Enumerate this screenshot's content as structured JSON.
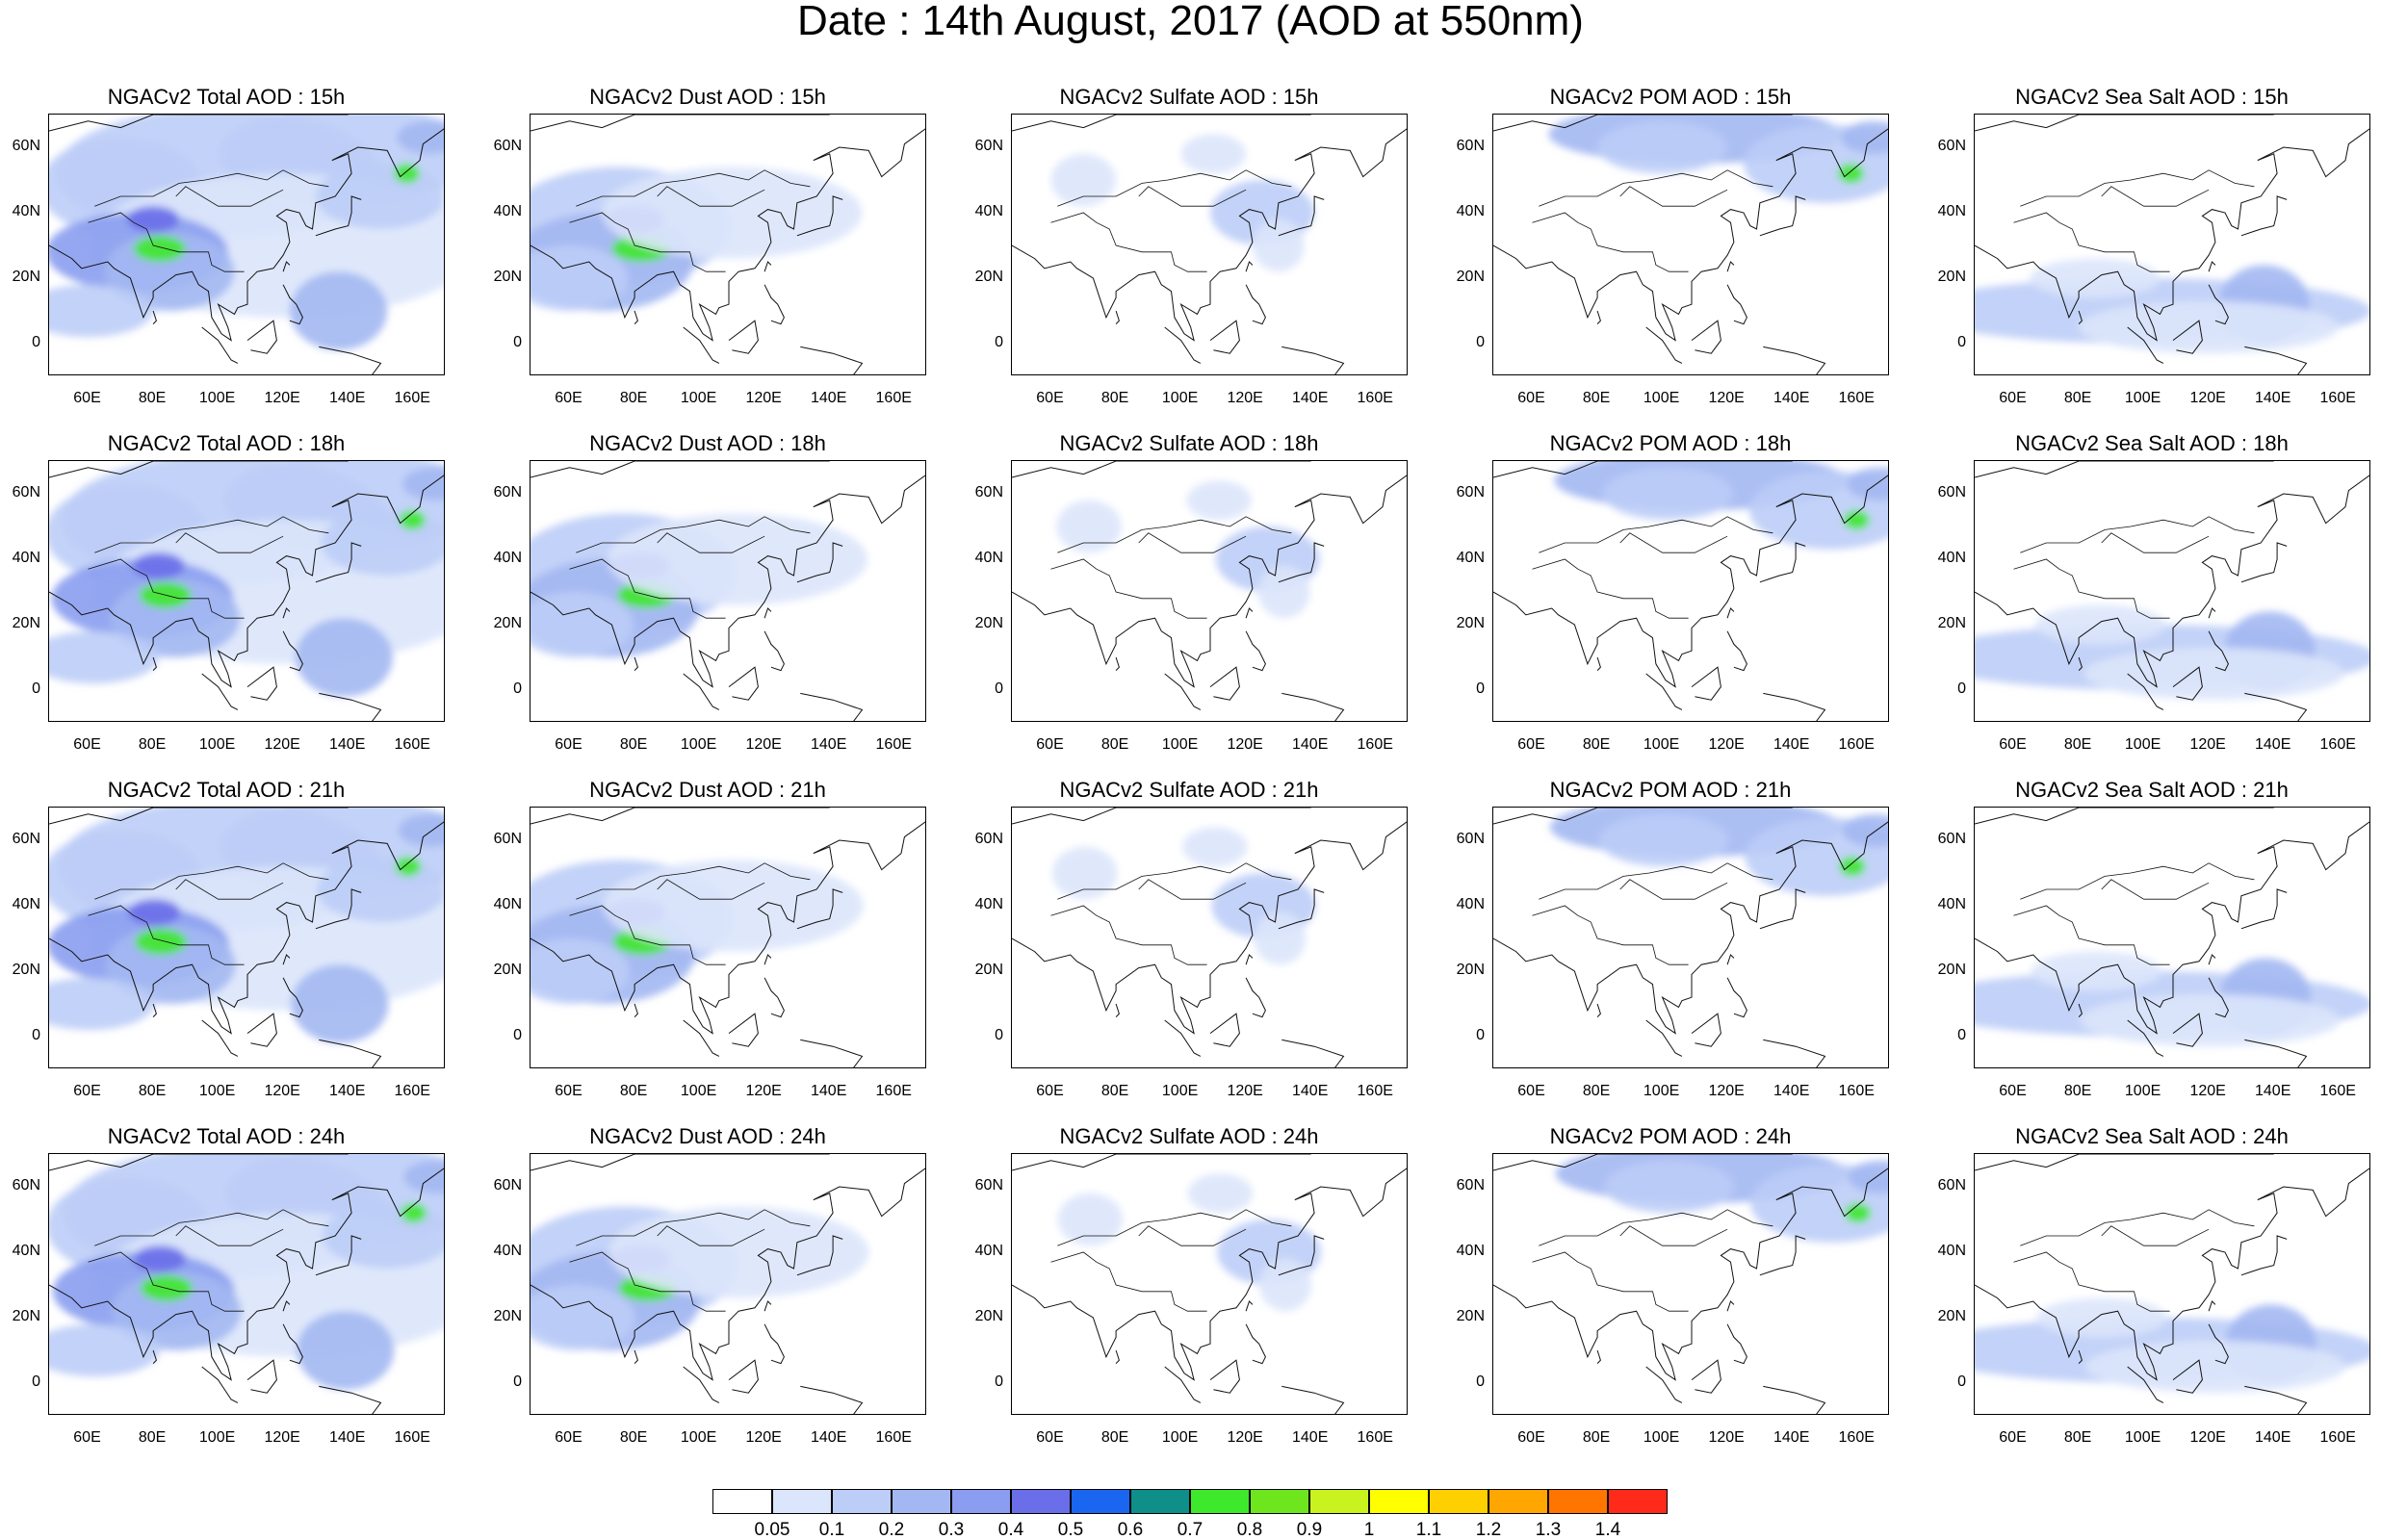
{
  "title": "Date : 14th August, 2017 (AOD at 550nm)",
  "panel_rows": [
    [
      "NGACv2 Total AOD : 15h",
      "NGACv2 Dust AOD : 15h",
      "NGACv2 Sulfate AOD : 15h",
      "NGACv2 POM AOD : 15h",
      "NGACv2 Sea Salt AOD : 15h"
    ],
    [
      "NGACv2 Total AOD : 18h",
      "NGACv2 Dust AOD : 18h",
      "NGACv2 Sulfate AOD : 18h",
      "NGACv2 POM AOD : 18h",
      "NGACv2 Sea Salt AOD : 18h"
    ],
    [
      "NGACv2 Total AOD : 21h",
      "NGACv2 Dust AOD : 21h",
      "NGACv2 Sulfate AOD : 21h",
      "NGACv2 POM AOD : 21h",
      "NGACv2 Sea Salt AOD : 21h"
    ],
    [
      "NGACv2 Total AOD : 24h",
      "NGACv2 Dust AOD : 24h",
      "NGACv2 Sulfate AOD : 24h",
      "NGACv2 POM AOD : 24h",
      "NGACv2 Sea Salt  AOD : 24h"
    ]
  ],
  "species": [
    "total",
    "dust",
    "sulfate",
    "pom",
    "seasalt"
  ],
  "lat_labels": [
    "60N",
    "40N",
    "20N",
    "0"
  ],
  "lon_labels": [
    "60E",
    "80E",
    "100E",
    "120E",
    "140E",
    "160E"
  ],
  "colorbar": {
    "labels": [
      "0.05",
      "0.1",
      "0.2",
      "0.3",
      "0.4",
      "0.5",
      "0.6",
      "0.7",
      "0.8",
      "0.9",
      "1",
      "1.1",
      "1.2",
      "1.3",
      "1.4"
    ],
    "colors": [
      "#ffffff",
      "#dbe5fb",
      "#bccdf7",
      "#a3b8f2",
      "#8a9df0",
      "#6a6ee8",
      "#1a66f0",
      "#0e8f8a",
      "#3ee82a",
      "#6ee61e",
      "#c9f21e",
      "#ffff00",
      "#ffd000",
      "#ffa600",
      "#ff7500",
      "#ff2a1a"
    ]
  }
}
